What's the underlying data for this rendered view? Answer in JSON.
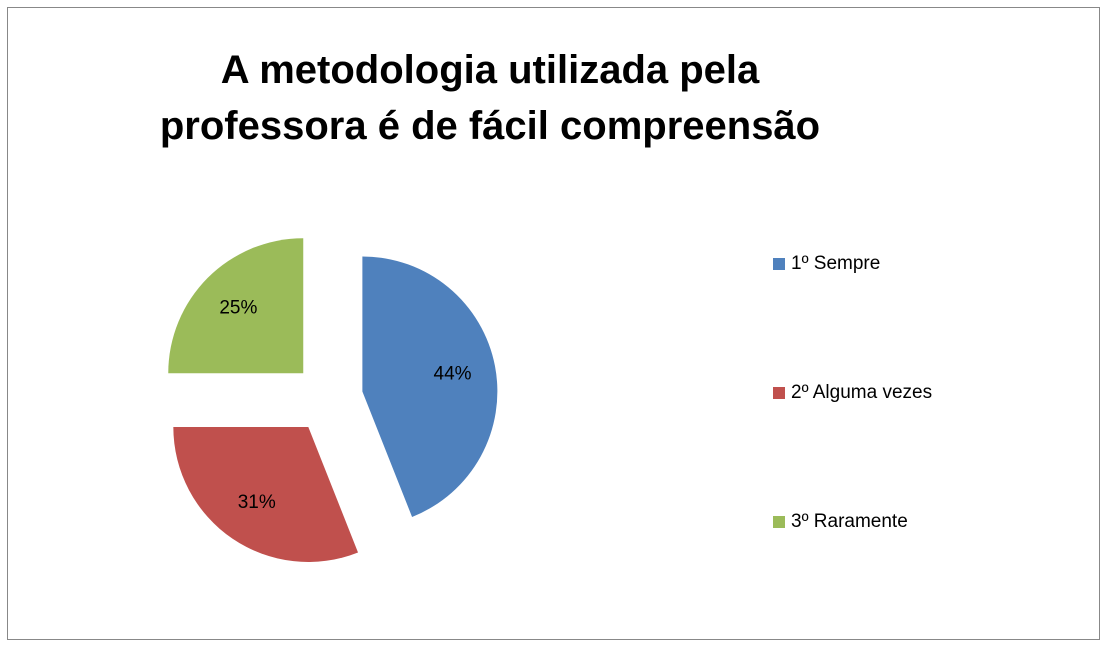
{
  "chart_data": {
    "type": "pie",
    "title": "A metodologia utilizada pela professora é de fácil compreensão",
    "categories": [
      "1º Sempre",
      "2º Alguma vezes",
      "3º Raramente"
    ],
    "values": [
      44,
      31,
      25
    ],
    "value_labels": [
      "44%",
      "31%",
      "25%"
    ],
    "colors": [
      "#4f81bd",
      "#c0504d",
      "#9bbb59"
    ],
    "legend": "right"
  }
}
